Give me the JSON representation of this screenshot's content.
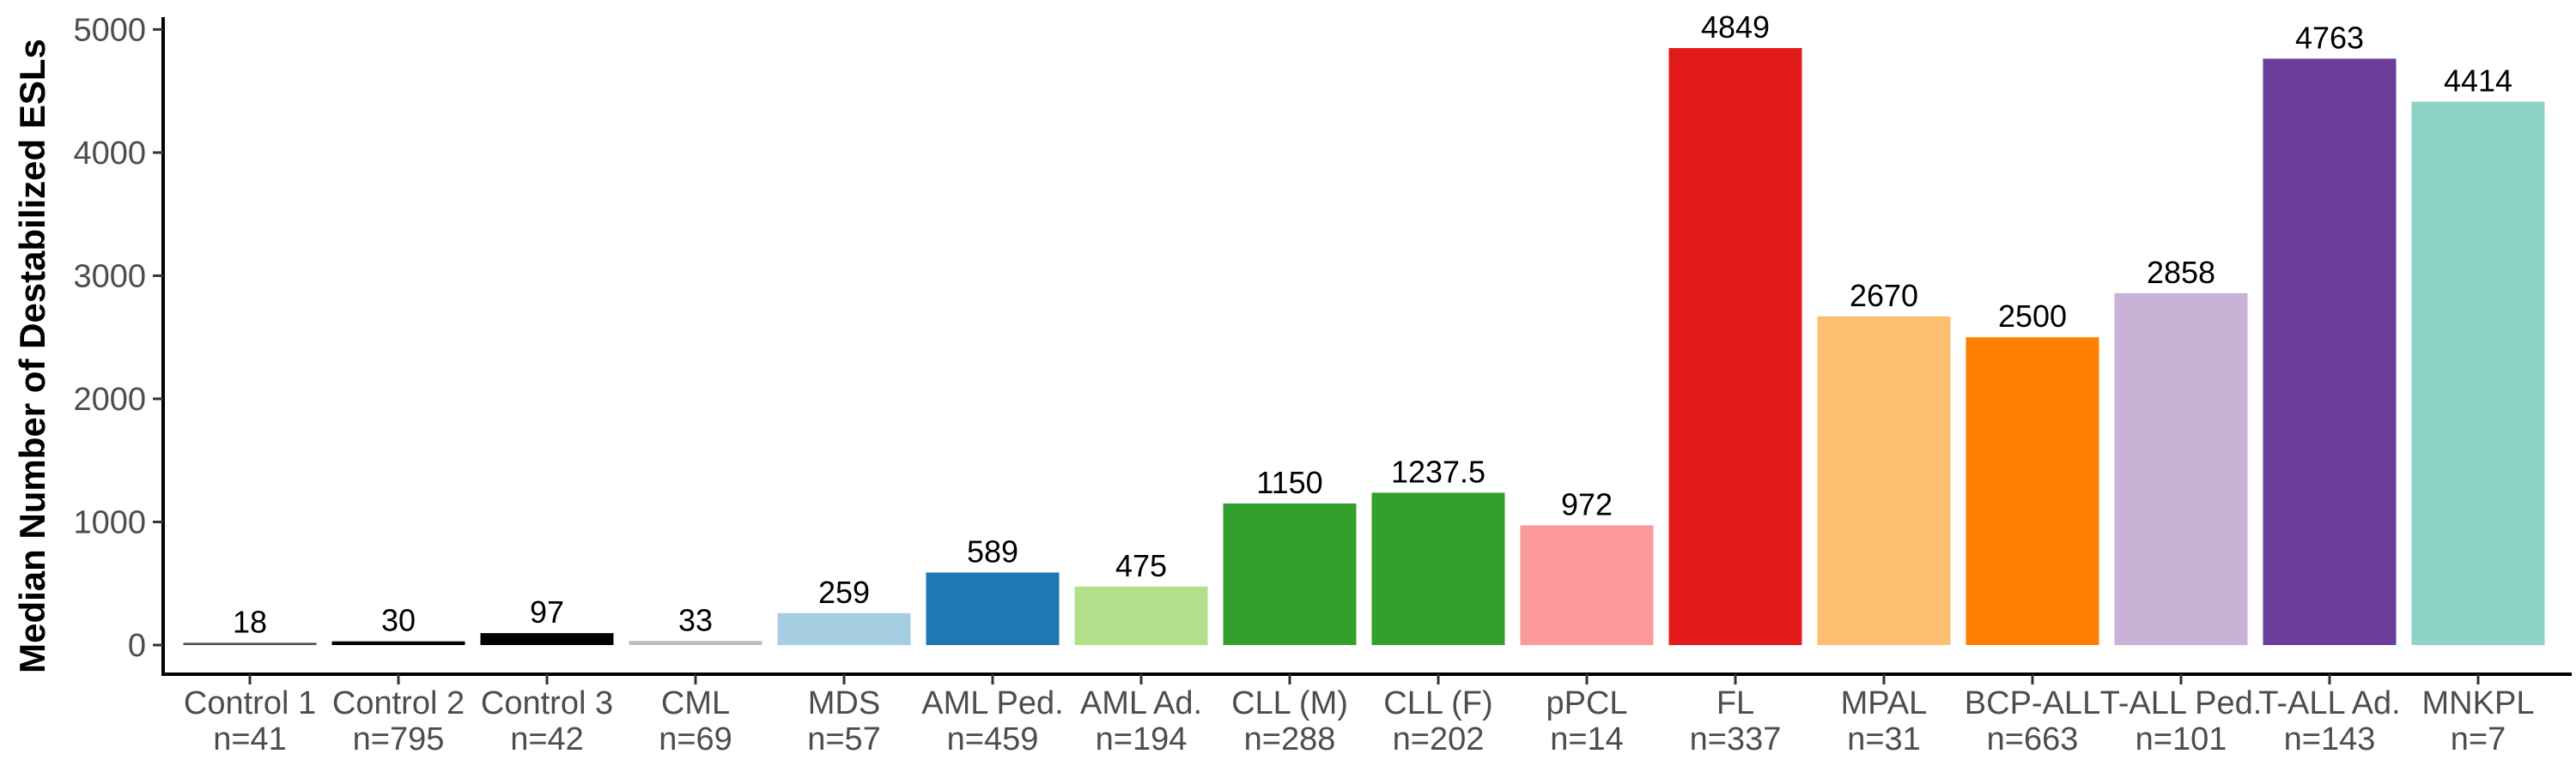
{
  "chart_data": {
    "type": "bar",
    "ylabel": "Median Number of Destabilized ESLs",
    "xlabel": "",
    "ylim": [
      0,
      5100
    ],
    "yticks": [
      0,
      1000,
      2000,
      3000,
      4000,
      5000
    ],
    "grid": false,
    "legend": "none",
    "bars": [
      {
        "label": "Control 1",
        "n": "n=41",
        "value": 18,
        "value_label": "18",
        "color": "#4d4d4d"
      },
      {
        "label": "Control 2",
        "n": "n=795",
        "value": 30,
        "value_label": "30",
        "color": "#000000"
      },
      {
        "label": "Control 3",
        "n": "n=42",
        "value": 97,
        "value_label": "97",
        "color": "#000000"
      },
      {
        "label": "CML",
        "n": "n=69",
        "value": 33,
        "value_label": "33",
        "color": "#bdbdbd"
      },
      {
        "label": "MDS",
        "n": "n=57",
        "value": 259,
        "value_label": "259",
        "color": "#a6cee3"
      },
      {
        "label": "AML Ped.",
        "n": "n=459",
        "value": 589,
        "value_label": "589",
        "color": "#1f78b4"
      },
      {
        "label": "AML Ad.",
        "n": "n=194",
        "value": 475,
        "value_label": "475",
        "color": "#b2df8a"
      },
      {
        "label": "CLL (M)",
        "n": "n=288",
        "value": 1150,
        "value_label": "1150",
        "color": "#33a02c"
      },
      {
        "label": "CLL (F)",
        "n": "n=202",
        "value": 1237.5,
        "value_label": "1237.5",
        "color": "#33a02c"
      },
      {
        "label": "pPCL",
        "n": "n=14",
        "value": 972,
        "value_label": "972",
        "color": "#fb9a99"
      },
      {
        "label": "FL",
        "n": "n=337",
        "value": 4849,
        "value_label": "4849",
        "color": "#e31a1c"
      },
      {
        "label": "MPAL",
        "n": "n=31",
        "value": 2670,
        "value_label": "2670",
        "color": "#fdbf6f"
      },
      {
        "label": "BCP-ALL",
        "n": "n=663",
        "value": 2500,
        "value_label": "2500",
        "color": "#ff7f00"
      },
      {
        "label": "T-ALL Ped.",
        "n": "n=101",
        "value": 2858,
        "value_label": "2858",
        "color": "#cab2d6"
      },
      {
        "label": "T-ALL Ad.",
        "n": "n=143",
        "value": 4763,
        "value_label": "4763",
        "color": "#6a3d9a"
      },
      {
        "label": "MNKPL",
        "n": "n=7",
        "value": 4414,
        "value_label": "4414",
        "color": "#8dd3c7"
      }
    ]
  }
}
